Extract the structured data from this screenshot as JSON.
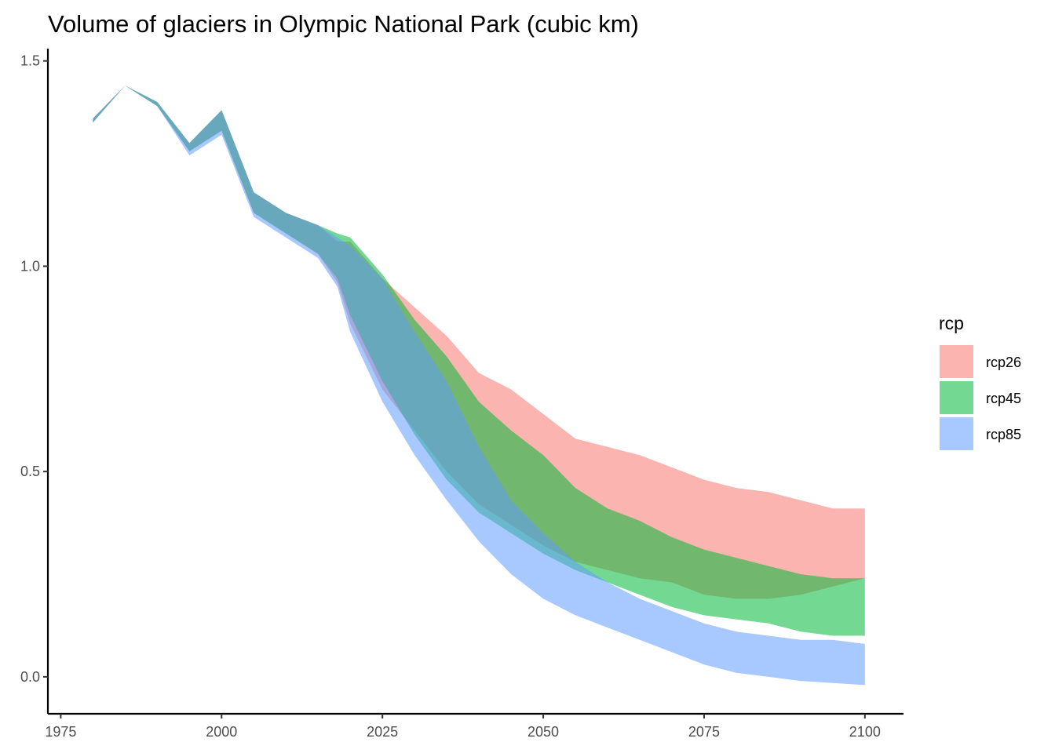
{
  "chart_data": {
    "type": "area",
    "title": "Volume of glaciers in Olympic National Park (cubic km)",
    "xlabel": "",
    "ylabel": "",
    "xlim": [
      1973,
      2106
    ],
    "ylim": [
      -0.09,
      1.53
    ],
    "x_ticks": [
      1975,
      2000,
      2025,
      2050,
      2075,
      2100
    ],
    "x_tick_labels": [
      "1975",
      "2000",
      "2025",
      "2050",
      "2075",
      "2100"
    ],
    "y_ticks": [
      0.0,
      0.5,
      1.0,
      1.5
    ],
    "y_tick_labels": [
      "0.0",
      "0.5",
      "1.0",
      "1.5"
    ],
    "grid": false,
    "legend": {
      "title": "rcp",
      "position": "right"
    },
    "series": [
      {
        "name": "rcp26",
        "color": "#F8766D",
        "x": [
          1980,
          1985,
          1990,
          1995,
          2000,
          2005,
          2010,
          2015,
          2018,
          2020,
          2025,
          2030,
          2035,
          2040,
          2045,
          2050,
          2055,
          2060,
          2065,
          2070,
          2075,
          2080,
          2085,
          2090,
          2095,
          2100
        ],
        "upper": [
          1.36,
          1.44,
          1.4,
          1.3,
          1.38,
          1.18,
          1.13,
          1.1,
          1.06,
          1.06,
          0.97,
          0.9,
          0.83,
          0.74,
          0.7,
          0.64,
          0.58,
          0.56,
          0.54,
          0.51,
          0.48,
          0.46,
          0.45,
          0.43,
          0.41,
          0.41
        ],
        "lower": [
          1.35,
          1.44,
          1.39,
          1.28,
          1.33,
          1.13,
          1.08,
          1.03,
          0.96,
          0.86,
          0.7,
          0.6,
          0.5,
          0.42,
          0.37,
          0.32,
          0.28,
          0.26,
          0.24,
          0.23,
          0.2,
          0.19,
          0.19,
          0.2,
          0.22,
          0.24
        ]
      },
      {
        "name": "rcp45",
        "color": "#00BA38",
        "x": [
          1980,
          1985,
          1990,
          1995,
          2000,
          2005,
          2010,
          2015,
          2018,
          2020,
          2025,
          2030,
          2035,
          2040,
          2045,
          2050,
          2055,
          2060,
          2065,
          2070,
          2075,
          2080,
          2085,
          2090,
          2095,
          2100
        ],
        "upper": [
          1.36,
          1.44,
          1.4,
          1.3,
          1.38,
          1.18,
          1.13,
          1.1,
          1.08,
          1.07,
          0.98,
          0.87,
          0.78,
          0.67,
          0.6,
          0.54,
          0.46,
          0.41,
          0.38,
          0.34,
          0.31,
          0.29,
          0.27,
          0.25,
          0.24,
          0.24
        ],
        "lower": [
          1.35,
          1.44,
          1.39,
          1.28,
          1.33,
          1.13,
          1.08,
          1.03,
          0.97,
          0.88,
          0.72,
          0.59,
          0.48,
          0.4,
          0.35,
          0.3,
          0.26,
          0.23,
          0.2,
          0.17,
          0.15,
          0.14,
          0.13,
          0.11,
          0.1,
          0.1
        ]
      },
      {
        "name": "rcp85",
        "color": "#619CFF",
        "x": [
          1980,
          1985,
          1990,
          1995,
          2000,
          2005,
          2010,
          2015,
          2018,
          2020,
          2025,
          2030,
          2035,
          2040,
          2045,
          2050,
          2055,
          2060,
          2065,
          2070,
          2075,
          2080,
          2085,
          2090,
          2095,
          2100
        ],
        "upper": [
          1.36,
          1.44,
          1.4,
          1.3,
          1.38,
          1.18,
          1.13,
          1.1,
          1.07,
          1.05,
          0.97,
          0.84,
          0.72,
          0.56,
          0.43,
          0.35,
          0.28,
          0.23,
          0.19,
          0.16,
          0.13,
          0.11,
          0.1,
          0.09,
          0.09,
          0.08
        ],
        "lower": [
          1.35,
          1.44,
          1.39,
          1.27,
          1.32,
          1.12,
          1.07,
          1.02,
          0.95,
          0.84,
          0.67,
          0.54,
          0.43,
          0.33,
          0.25,
          0.19,
          0.15,
          0.12,
          0.09,
          0.06,
          0.03,
          0.01,
          0.0,
          -0.01,
          -0.015,
          -0.02
        ]
      }
    ]
  }
}
